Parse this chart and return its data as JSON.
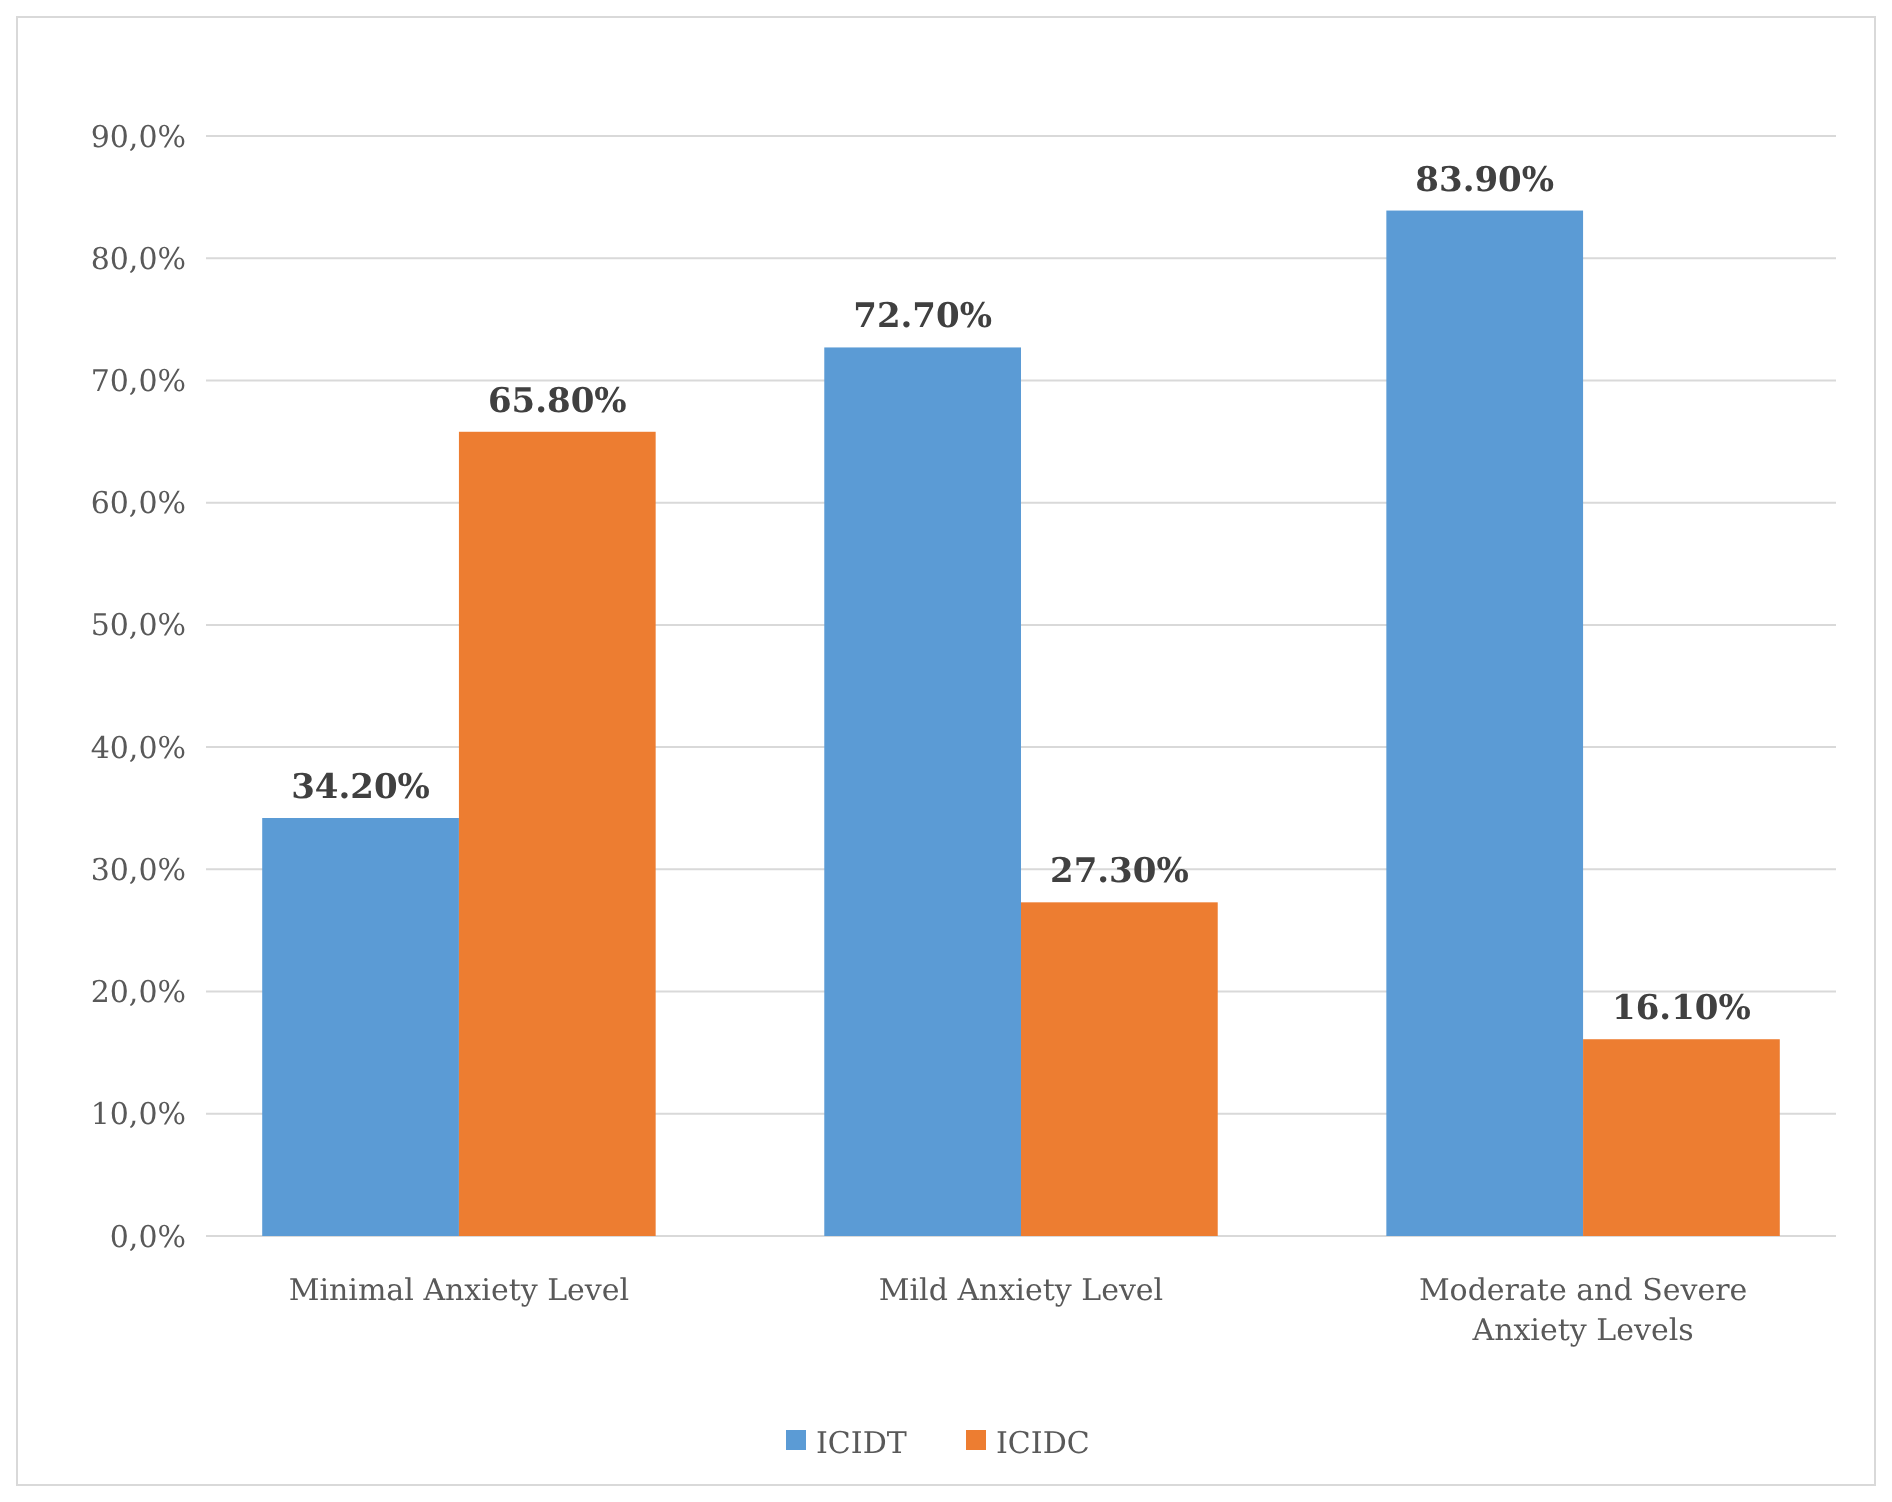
{
  "chart_data": {
    "type": "bar",
    "categories": [
      "Minimal Anxiety Level",
      "Mild Anxiety Level",
      "Moderate and Severe Anxiety Levels"
    ],
    "series": [
      {
        "name": "ICIDT",
        "color": "#5b9bd5",
        "values": [
          34.2,
          72.7,
          83.9
        ],
        "value_labels": [
          "34.20%",
          "72.70%",
          "83.90%"
        ]
      },
      {
        "name": "ICIDC",
        "color": "#ed7d31",
        "values": [
          65.8,
          27.3,
          16.1
        ],
        "value_labels": [
          "65.80%",
          "27.30%",
          "16.10%"
        ]
      }
    ],
    "ylim": [
      0,
      90
    ],
    "yticks": [
      {
        "value": 0,
        "label": "0,0%"
      },
      {
        "value": 10,
        "label": "10,0%"
      },
      {
        "value": 20,
        "label": "20,0%"
      },
      {
        "value": 30,
        "label": "30,0%"
      },
      {
        "value": 40,
        "label": "40,0%"
      },
      {
        "value": 50,
        "label": "50,0%"
      },
      {
        "value": 60,
        "label": "60,0%"
      },
      {
        "value": 70,
        "label": "70,0%"
      },
      {
        "value": 80,
        "label": "80,0%"
      },
      {
        "value": 90,
        "label": "90,0%"
      }
    ],
    "grid": "y",
    "legend": "bottom"
  }
}
